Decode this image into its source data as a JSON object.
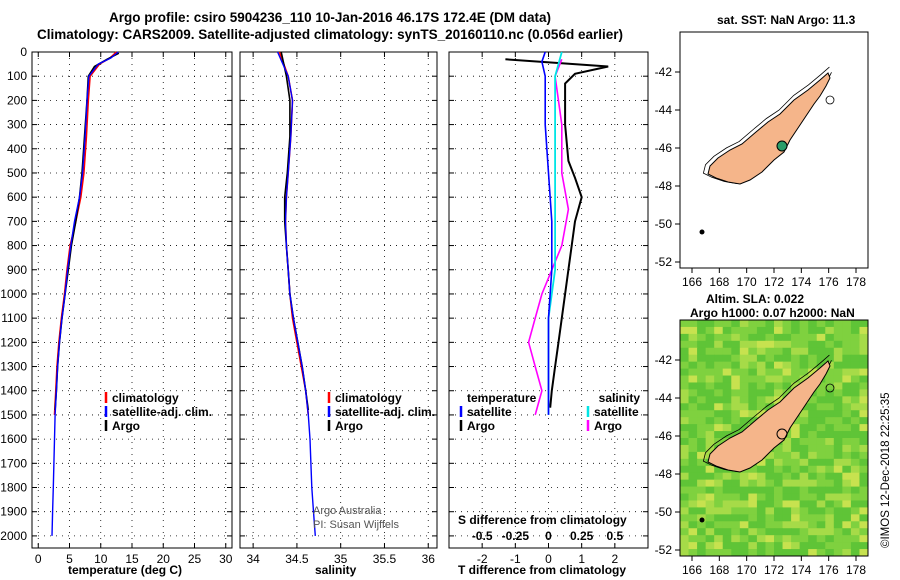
{
  "title_line1": "Argo profile: csiro 5904236_110 10-Jan-2016 46.17S 172.4E (DM data)",
  "title_line2": "Climatology: CARS2009. Satellite-adjusted climatology: synTS_20160110.nc (0.056d earlier)",
  "colors": {
    "climatology": "#ff0000",
    "satellite": "#0000ff",
    "argo": "#000000",
    "sat_salinity": "#00e5e5",
    "argo_salinity_diff": "#ff00ff",
    "land": "#f5b58a",
    "float": "#2a9d6a"
  },
  "chart_data": [
    {
      "id": "temperature",
      "type": "line",
      "xlabel": "temperature (deg C)",
      "ylabel": "depth",
      "xlim": [
        -1,
        31
      ],
      "ylim": [
        2050,
        0
      ],
      "xticks": [
        "0",
        "5",
        "10",
        "15",
        "20",
        "25",
        "30"
      ],
      "yticks": [
        "0",
        "100",
        "200",
        "300",
        "400",
        "500",
        "600",
        "700",
        "800",
        "900",
        "1000",
        "1100",
        "1200",
        "1300",
        "1400",
        "1500",
        "1600",
        "1700",
        "1800",
        "1900",
        "2000"
      ],
      "legend": [
        "climatology",
        "satellite-adj. clim.",
        "Argo"
      ],
      "series": [
        {
          "name": "climatology",
          "points": [
            [
              12.5,
              0
            ],
            [
              11.5,
              25
            ],
            [
              9.8,
              50
            ],
            [
              8.3,
              100
            ],
            [
              8.0,
              200
            ],
            [
              7.7,
              350
            ],
            [
              7.3,
              500
            ],
            [
              6.8,
              600
            ],
            [
              6.0,
              700
            ],
            [
              5.1,
              800
            ],
            [
              4.6,
              900
            ],
            [
              4.2,
              1000
            ],
            [
              3.7,
              1100
            ],
            [
              3.3,
              1200
            ],
            [
              3.0,
              1300
            ],
            [
              2.8,
              1400
            ],
            [
              2.6,
              1500
            ]
          ]
        },
        {
          "name": "satellite-adj. clim.",
          "points": [
            [
              12.8,
              0
            ],
            [
              11.6,
              25
            ],
            [
              9.6,
              50
            ],
            [
              8.1,
              100
            ],
            [
              7.8,
              200
            ],
            [
              7.5,
              350
            ],
            [
              7.1,
              500
            ],
            [
              6.6,
              600
            ],
            [
              5.8,
              700
            ],
            [
              5.2,
              800
            ],
            [
              4.7,
              900
            ],
            [
              4.3,
              1000
            ],
            [
              3.8,
              1100
            ],
            [
              3.4,
              1200
            ],
            [
              3.1,
              1300
            ],
            [
              2.9,
              1400
            ],
            [
              2.7,
              1500
            ],
            [
              2.6,
              1600
            ],
            [
              2.5,
              1700
            ],
            [
              2.4,
              1800
            ],
            [
              2.3,
              1900
            ],
            [
              2.2,
              2000
            ]
          ]
        },
        {
          "name": "Argo",
          "points": [
            [
              12.9,
              5
            ],
            [
              11.0,
              30
            ],
            [
              9.0,
              60
            ],
            [
              8.0,
              100
            ],
            [
              7.8,
              200
            ],
            [
              7.4,
              350
            ],
            [
              7.0,
              500
            ],
            [
              6.6,
              600
            ],
            [
              6.0,
              700
            ],
            [
              5.3,
              800
            ],
            [
              4.8,
              900
            ],
            [
              4.3,
              1000
            ],
            [
              3.8,
              1100
            ],
            [
              3.4,
              1200
            ],
            [
              3.1,
              1300
            ],
            [
              2.9,
              1400
            ],
            [
              2.7,
              1480
            ]
          ]
        }
      ]
    },
    {
      "id": "salinity",
      "type": "line",
      "xlabel": "salinity",
      "ylabel": "depth",
      "xlim": [
        33.85,
        36.1
      ],
      "ylim": [
        2050,
        0
      ],
      "xticks": [
        "34",
        "34.5",
        "35",
        "35.5",
        "36"
      ],
      "legend": [
        "climatology",
        "satellite-adj. clim.",
        "Argo"
      ],
      "series": [
        {
          "name": "climatology",
          "points": [
            [
              34.3,
              0
            ],
            [
              34.35,
              50
            ],
            [
              34.4,
              100
            ],
            [
              34.45,
              200
            ],
            [
              34.43,
              350
            ],
            [
              34.4,
              500
            ],
            [
              34.38,
              600
            ],
            [
              34.37,
              700
            ],
            [
              34.38,
              800
            ],
            [
              34.4,
              900
            ],
            [
              34.42,
              1000
            ],
            [
              34.45,
              1100
            ],
            [
              34.5,
              1200
            ],
            [
              34.55,
              1300
            ],
            [
              34.6,
              1400
            ],
            [
              34.63,
              1500
            ]
          ]
        },
        {
          "name": "satellite-adj. clim.",
          "points": [
            [
              34.28,
              0
            ],
            [
              34.34,
              50
            ],
            [
              34.4,
              100
            ],
            [
              34.45,
              200
            ],
            [
              34.43,
              350
            ],
            [
              34.4,
              500
            ],
            [
              34.38,
              600
            ],
            [
              34.37,
              700
            ],
            [
              34.38,
              800
            ],
            [
              34.4,
              900
            ],
            [
              34.42,
              1000
            ],
            [
              34.46,
              1100
            ],
            [
              34.51,
              1200
            ],
            [
              34.56,
              1300
            ],
            [
              34.6,
              1400
            ],
            [
              34.63,
              1500
            ],
            [
              34.65,
              1600
            ],
            [
              34.66,
              1700
            ],
            [
              34.67,
              1800
            ],
            [
              34.69,
              1900
            ],
            [
              34.71,
              2000
            ]
          ]
        },
        {
          "name": "Argo",
          "points": [
            [
              34.32,
              0
            ],
            [
              34.35,
              50
            ],
            [
              34.38,
              100
            ],
            [
              34.42,
              200
            ],
            [
              34.42,
              350
            ],
            [
              34.39,
              500
            ],
            [
              34.36,
              600
            ],
            [
              34.36,
              700
            ],
            [
              34.38,
              800
            ],
            [
              34.4,
              900
            ],
            [
              34.42,
              1000
            ],
            [
              34.46,
              1100
            ],
            [
              34.51,
              1200
            ],
            [
              34.56,
              1300
            ],
            [
              34.6,
              1400
            ],
            [
              34.63,
              1480
            ]
          ]
        }
      ],
      "credit1": "Argo Australia",
      "credit2": "PI: Susan Wijffels"
    },
    {
      "id": "difference",
      "type": "line",
      "xlabel": "T difference from climatology",
      "xlabel_top": "S difference from climatology",
      "xlim": [
        -3,
        3
      ],
      "ylim": [
        2050,
        0
      ],
      "xticks": [
        "-2",
        "-1",
        "0",
        "1",
        "2"
      ],
      "xticks_s": [
        "-0.5",
        "-0.25",
        "0",
        "0.25",
        "0.5"
      ],
      "legend_t_title": "temperature",
      "legend_s_title": "salinity",
      "legend_t": [
        "satellite",
        "Argo"
      ],
      "legend_s": [
        "satellite",
        "Argo"
      ],
      "series": [
        {
          "name": "T satellite",
          "points": [
            [
              -0.1,
              0
            ],
            [
              -0.2,
              40
            ],
            [
              -0.1,
              100
            ],
            [
              -0.1,
              300
            ],
            [
              0.0,
              500
            ],
            [
              0.1,
              700
            ],
            [
              0.1,
              900
            ],
            [
              0.0,
              1100
            ],
            [
              0.0,
              1300
            ],
            [
              0.0,
              1500
            ]
          ]
        },
        {
          "name": "T Argo",
          "points": [
            [
              -1.3,
              30
            ],
            [
              1.8,
              60
            ],
            [
              0.8,
              90
            ],
            [
              0.5,
              130
            ],
            [
              0.5,
              300
            ],
            [
              0.6,
              450
            ],
            [
              0.8,
              520
            ],
            [
              1.0,
              600
            ],
            [
              0.8,
              700
            ],
            [
              0.7,
              800
            ],
            [
              0.6,
              900
            ],
            [
              0.5,
              1000
            ],
            [
              0.4,
              1100
            ],
            [
              0.3,
              1200
            ],
            [
              0.2,
              1300
            ],
            [
              0.1,
              1400
            ],
            [
              0.05,
              1470
            ]
          ]
        },
        {
          "name": "S satellite",
          "points": [
            [
              0.1,
              0
            ],
            [
              0.05,
              100
            ],
            [
              0.05,
              300
            ],
            [
              0.05,
              500
            ],
            [
              0.05,
              700
            ],
            [
              0.05,
              900
            ],
            [
              0.0,
              1100
            ],
            [
              0.0,
              1300
            ],
            [
              0.0,
              1500
            ]
          ]
        },
        {
          "name": "S Argo",
          "points": [
            [
              0.1,
              30
            ],
            [
              0.05,
              100
            ],
            [
              0.1,
              300
            ],
            [
              0.1,
              500
            ],
            [
              0.15,
              650
            ],
            [
              0.1,
              800
            ],
            [
              -0.05,
              1000
            ],
            [
              -0.1,
              1100
            ],
            [
              -0.15,
              1200
            ],
            [
              -0.1,
              1300
            ],
            [
              -0.05,
              1400
            ],
            [
              -0.1,
              1500
            ]
          ]
        }
      ]
    }
  ],
  "map_sst": {
    "title": "sat. SST: NaN Argo: 11.3",
    "lat_ticks": [
      "-42",
      "-44",
      "-46",
      "-48",
      "-50",
      "-52"
    ],
    "lon_ticks": [
      "166",
      "168",
      "170",
      "172",
      "174",
      "176",
      "178"
    ]
  },
  "map_sla": {
    "title1": "Altim. SLA: 0.022",
    "title2": "Argo h1000: 0.07 h2000: NaN",
    "lat_ticks": [
      "-42",
      "-44",
      "-46",
      "-48",
      "-50",
      "-52"
    ],
    "lon_ticks": [
      "166",
      "168",
      "170",
      "172",
      "174",
      "176",
      "178"
    ]
  },
  "footer_credit": "©IMOS 12-Dec-2018 22:25:35"
}
